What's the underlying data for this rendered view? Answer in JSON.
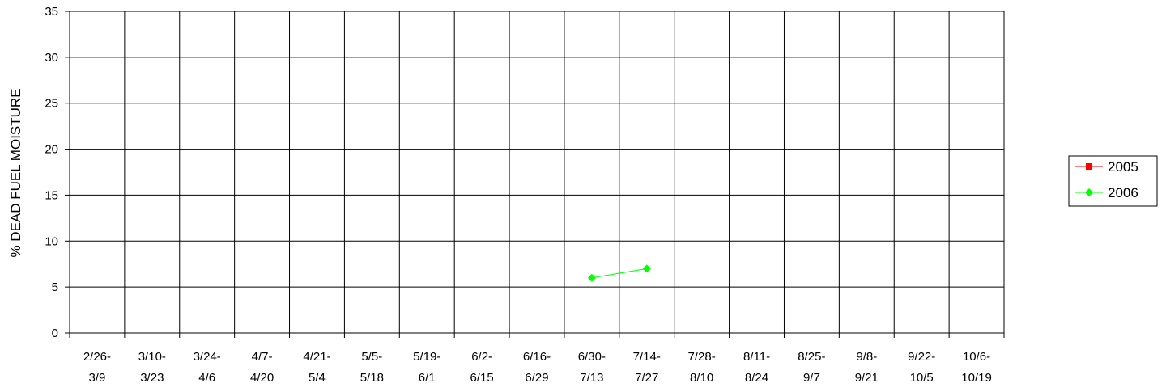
{
  "chart_data": {
    "type": "line",
    "ylabel": "% DEAD FUEL MOISTURE",
    "xlabel": "",
    "ylim": [
      0,
      35
    ],
    "yticks": [
      "0",
      "5",
      "10",
      "15",
      "20",
      "25",
      "30",
      "35"
    ],
    "categories": [
      [
        "2/26-",
        "3/9"
      ],
      [
        "3/10-",
        "3/23"
      ],
      [
        "3/24-",
        "4/6"
      ],
      [
        "4/7-",
        "4/20"
      ],
      [
        "4/21-",
        "5/4"
      ],
      [
        "5/5-",
        "5/18"
      ],
      [
        "5/19-",
        "6/1"
      ],
      [
        "6/2-",
        "6/15"
      ],
      [
        "6/16-",
        "6/29"
      ],
      [
        "6/30-",
        "7/13"
      ],
      [
        "7/14-",
        "7/27"
      ],
      [
        "7/28-",
        "8/10"
      ],
      [
        "8/11-",
        "8/24"
      ],
      [
        "8/25-",
        "9/7"
      ],
      [
        "9/8-",
        "9/21"
      ],
      [
        "9/22-",
        "10/5"
      ],
      [
        "10/6-",
        "10/19"
      ]
    ],
    "grid": true,
    "legend_position": "right",
    "series": [
      {
        "name": "2005",
        "color": "#ff0000",
        "marker": "square",
        "values": [
          null,
          null,
          null,
          null,
          null,
          null,
          null,
          null,
          null,
          null,
          null,
          null,
          null,
          null,
          null,
          null,
          null
        ]
      },
      {
        "name": "2006",
        "color": "#00ff00",
        "marker": "diamond",
        "values": [
          null,
          null,
          null,
          null,
          null,
          null,
          null,
          null,
          null,
          6,
          7,
          null,
          null,
          null,
          null,
          null,
          null
        ]
      }
    ]
  }
}
